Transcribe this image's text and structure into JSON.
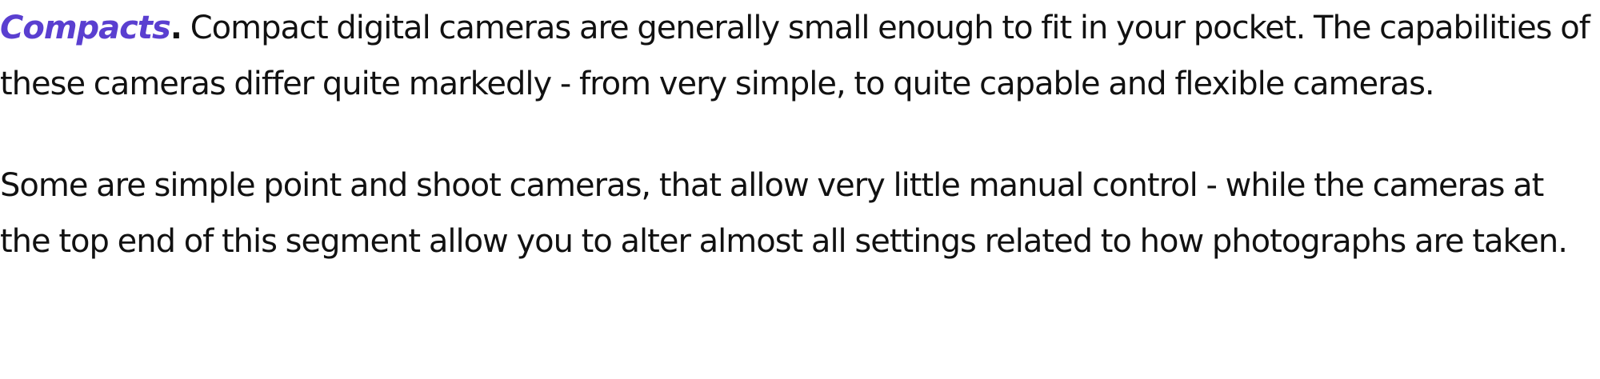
{
  "article": {
    "lead_term": "Compacts",
    "lead_punctuation": ".",
    "paragraph_1": " Compact digital cameras are generally small enough to fit in your pocket. The capabilities of these cameras differ quite markedly - from very simple, to quite capable and flexible cameras.",
    "paragraph_2": "Some are simple point and shoot cameras, that allow very little manual control - while the cameras at the top end of this segment allow you to alter almost all settings related to how photographs are taken."
  },
  "colors": {
    "lead_term": "#5a3fd0",
    "body_text": "#111111",
    "background": "#ffffff"
  }
}
